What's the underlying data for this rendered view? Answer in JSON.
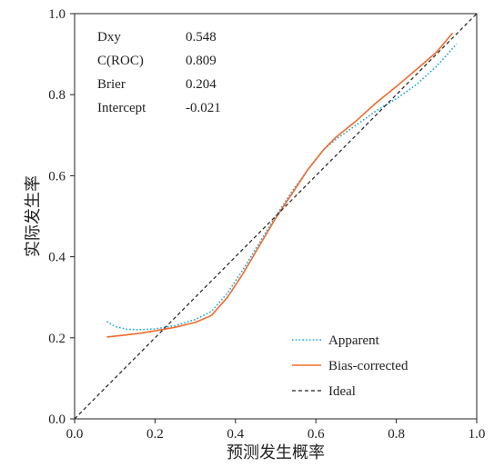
{
  "chart_data": {
    "type": "line",
    "title": "",
    "xlabel": "预测发生概率",
    "ylabel": "实际发生率",
    "xlim": [
      0.0,
      1.0
    ],
    "ylim": [
      0.0,
      1.0
    ],
    "x_tick_labels": [
      "0.0",
      "0.2",
      "0.4",
      "0.6",
      "0.8",
      "1.0"
    ],
    "y_tick_labels": [
      "0.0",
      "0.2",
      "0.4",
      "0.6",
      "0.8",
      "1.0"
    ],
    "grid": false,
    "legend_position": "bottom-right",
    "stats": [
      {
        "label": "Dxy",
        "value": "0.548"
      },
      {
        "label": "C(ROC)",
        "value": "0.809"
      },
      {
        "label": "Brier",
        "value": "0.204"
      },
      {
        "label": "Intercept",
        "value": "-0.021"
      }
    ],
    "series": [
      {
        "name": "Apparent",
        "style": "dotted",
        "color": "#1aa7e0",
        "points": [
          [
            0.08,
            0.24
          ],
          [
            0.1,
            0.228
          ],
          [
            0.13,
            0.221
          ],
          [
            0.16,
            0.22
          ],
          [
            0.2,
            0.222
          ],
          [
            0.25,
            0.23
          ],
          [
            0.3,
            0.245
          ],
          [
            0.34,
            0.265
          ],
          [
            0.38,
            0.31
          ],
          [
            0.42,
            0.37
          ],
          [
            0.46,
            0.435
          ],
          [
            0.5,
            0.5
          ],
          [
            0.54,
            0.56
          ],
          [
            0.58,
            0.615
          ],
          [
            0.62,
            0.665
          ],
          [
            0.65,
            0.69
          ],
          [
            0.7,
            0.725
          ],
          [
            0.75,
            0.76
          ],
          [
            0.8,
            0.79
          ],
          [
            0.85,
            0.825
          ],
          [
            0.9,
            0.87
          ],
          [
            0.95,
            0.925
          ]
        ]
      },
      {
        "name": "Bias-corrected",
        "style": "solid",
        "color": "#f26b2b",
        "points": [
          [
            0.08,
            0.202
          ],
          [
            0.12,
            0.206
          ],
          [
            0.16,
            0.211
          ],
          [
            0.2,
            0.217
          ],
          [
            0.25,
            0.226
          ],
          [
            0.3,
            0.238
          ],
          [
            0.34,
            0.255
          ],
          [
            0.38,
            0.3
          ],
          [
            0.42,
            0.36
          ],
          [
            0.46,
            0.428
          ],
          [
            0.5,
            0.495
          ],
          [
            0.54,
            0.555
          ],
          [
            0.58,
            0.615
          ],
          [
            0.62,
            0.665
          ],
          [
            0.65,
            0.695
          ],
          [
            0.7,
            0.735
          ],
          [
            0.75,
            0.78
          ],
          [
            0.8,
            0.82
          ],
          [
            0.85,
            0.862
          ],
          [
            0.9,
            0.905
          ],
          [
            0.94,
            0.952
          ]
        ]
      },
      {
        "name": "Ideal",
        "style": "dashed",
        "color": "#222222",
        "points": [
          [
            0.0,
            0.0
          ],
          [
            1.0,
            1.0
          ]
        ]
      }
    ]
  }
}
